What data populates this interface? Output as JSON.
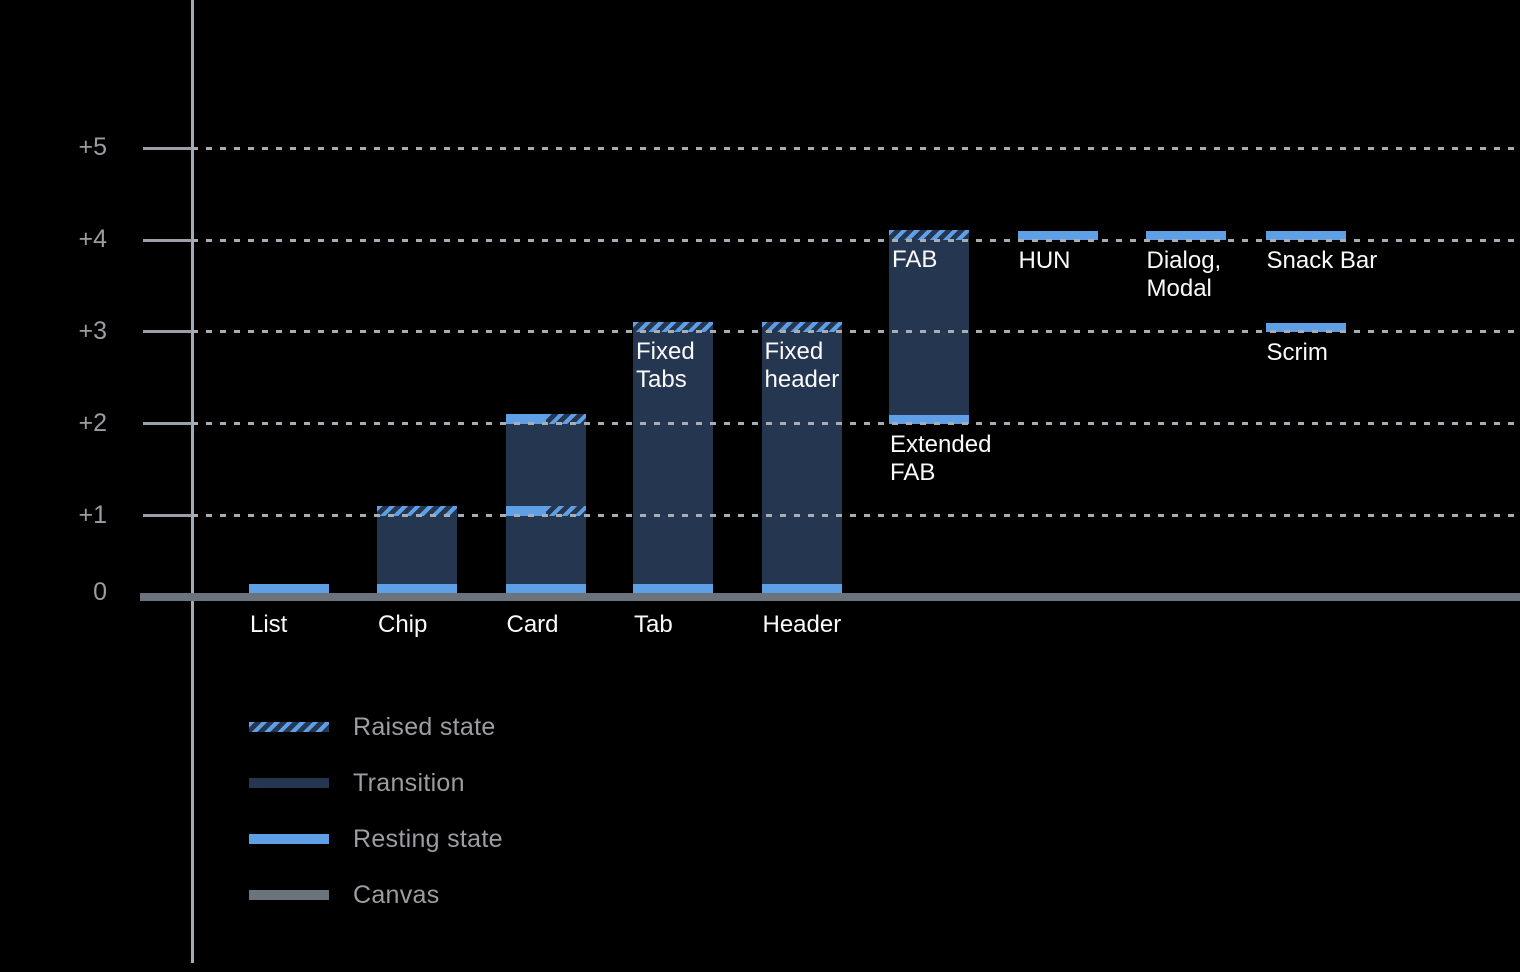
{
  "colors": {
    "background": "#000000",
    "resting_blue": "#5f9fe6",
    "transition_navy": "#243650",
    "canvas_gray": "#6b737d",
    "gridline_gray": "#a6adb4",
    "axis_text_gray": "#9c9da2",
    "bar_text_white": "#fafafa"
  },
  "chart_data": {
    "type": "bar",
    "title": "",
    "xlabel": "",
    "ylabel": "",
    "ylim": [
      0,
      5
    ],
    "grid": "horizontal dotted lines at each elevation level, drawn over bars",
    "legend_position": "bottom-left",
    "axis": {
      "yticks": [
        {
          "label": "+5",
          "value": 5
        },
        {
          "label": "+4",
          "value": 4
        },
        {
          "label": "+3",
          "value": 3
        },
        {
          "label": "+2",
          "value": 2
        },
        {
          "label": "+1",
          "value": 1
        },
        {
          "label": "0",
          "value": 0
        }
      ]
    },
    "legend": {
      "items": [
        {
          "key": "raised",
          "label": "Raised state"
        },
        {
          "key": "transition",
          "label": "Transition"
        },
        {
          "key": "resting",
          "label": "Resting state"
        },
        {
          "key": "canvas",
          "label": "Canvas"
        }
      ]
    },
    "bars": [
      {
        "name": "List",
        "col": 0,
        "axis_label": "List",
        "segments": [
          {
            "kind": "resting",
            "level": 0
          }
        ]
      },
      {
        "name": "Chip",
        "col": 1,
        "axis_label": "Chip",
        "segments": [
          {
            "kind": "body",
            "from": 0,
            "to": 1
          },
          {
            "kind": "resting",
            "level": 0
          },
          {
            "kind": "raised",
            "level": 1
          }
        ]
      },
      {
        "name": "Card",
        "col": 2,
        "axis_label": "Card",
        "segments": [
          {
            "kind": "body",
            "from": 0,
            "to": 2
          },
          {
            "kind": "resting",
            "level": 0
          },
          {
            "kind": "split",
            "level": 1
          },
          {
            "kind": "split",
            "level": 2
          }
        ]
      },
      {
        "name": "Tab",
        "col": 3,
        "axis_label": "Tab",
        "inner_label": "Fixed\nTabs",
        "segments": [
          {
            "kind": "body",
            "from": 0,
            "to": 3
          },
          {
            "kind": "resting",
            "level": 0
          },
          {
            "kind": "raised",
            "level": 3
          }
        ]
      },
      {
        "name": "Header",
        "col": 4,
        "axis_label": "Header",
        "inner_label": "Fixed\nheader",
        "segments": [
          {
            "kind": "body",
            "from": 0,
            "to": 3
          },
          {
            "kind": "resting",
            "level": 0
          },
          {
            "kind": "raised",
            "level": 3
          }
        ]
      },
      {
        "name": "FAB",
        "col": 5,
        "inner_label": "FAB",
        "below_label": {
          "text": "Extended\nFAB",
          "level": 2
        },
        "segments": [
          {
            "kind": "body",
            "from": 2,
            "to": 4
          },
          {
            "kind": "resting",
            "level": 2
          },
          {
            "kind": "raised",
            "level": 4
          }
        ]
      },
      {
        "name": "HUN",
        "col": 6,
        "below_label": {
          "text": "HUN",
          "level": 4
        },
        "segments": [
          {
            "kind": "resting",
            "level": 4
          }
        ]
      },
      {
        "name": "Dialog, Modal",
        "col": 7,
        "below_label": {
          "text": "Dialog,\nModal",
          "level": 4
        },
        "segments": [
          {
            "kind": "resting",
            "level": 4
          }
        ]
      },
      {
        "name": "Snack Bar",
        "col": 8,
        "below_label": {
          "text": "Snack Bar",
          "level": 4
        },
        "segments": [
          {
            "kind": "resting",
            "level": 4
          }
        ]
      },
      {
        "name": "Scrim",
        "col": 8,
        "below_label": {
          "text": "Scrim",
          "level": 3
        },
        "segments": [
          {
            "kind": "resting",
            "level": 3
          }
        ]
      }
    ]
  }
}
